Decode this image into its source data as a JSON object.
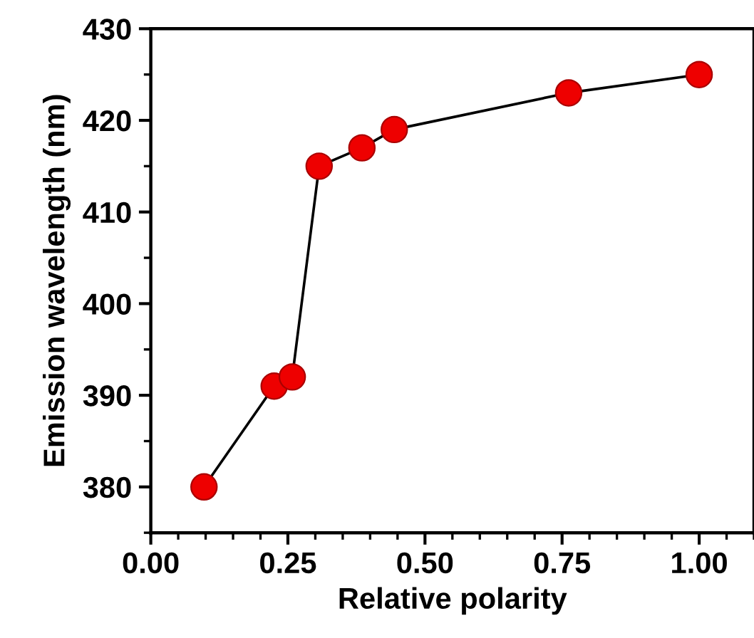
{
  "chart_data": {
    "type": "line",
    "xlabel": "Relative polarity",
    "ylabel": "Emission wavelength (nm)",
    "x": [
      0.097,
      0.225,
      0.258,
      0.307,
      0.385,
      0.444,
      0.762,
      1.0
    ],
    "series": [
      {
        "color": "#ee0000",
        "values": [
          380,
          391,
          392,
          415,
          417,
          419,
          423,
          425
        ]
      }
    ],
    "marker": "circle",
    "line_style": "solid",
    "grid": false,
    "legend": false,
    "xlim": [
      0,
      1.1
    ],
    "xticks": [
      {
        "value": 0,
        "label": "0.00"
      },
      {
        "value": 0.25,
        "label": "0.25"
      },
      {
        "value": 0.5,
        "label": "0.50"
      },
      {
        "value": 0.75,
        "label": "0.75"
      },
      {
        "value": 1.0,
        "label": "1.00"
      }
    ],
    "ylim": [
      375,
      430
    ],
    "yticks": [
      380,
      390,
      400,
      410,
      420,
      430
    ]
  }
}
